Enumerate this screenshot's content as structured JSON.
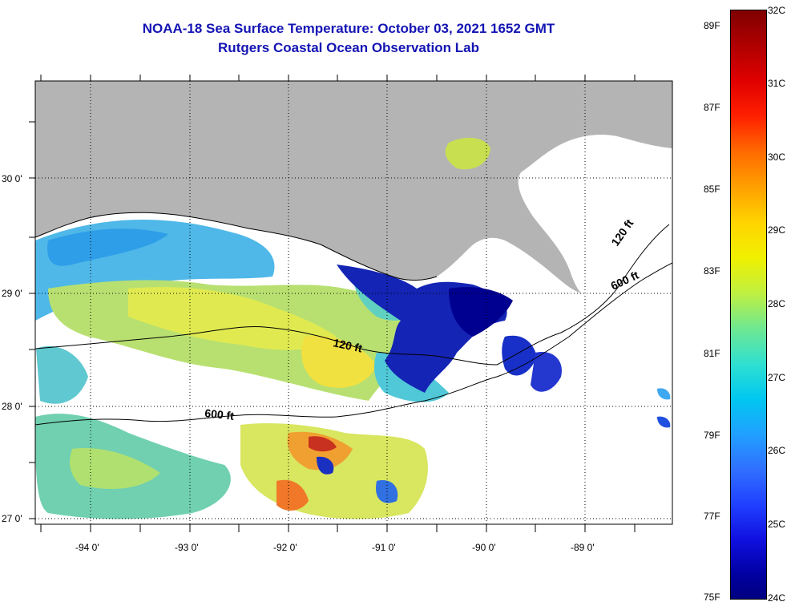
{
  "header": {
    "title": "NOAA-18 Sea Surface Temperature:  October 03, 2021 1652 GMT",
    "subtitle": "Rutgers Coastal Ocean Observation Lab"
  },
  "map": {
    "latitude_labels": [
      "30 0'",
      "29 0'",
      "28 0'",
      "27 0'"
    ],
    "longitude_labels": [
      "-94 0'",
      "-93 0'",
      "-92 0'",
      "-91 0'",
      "-90 0'",
      "-89 0'"
    ],
    "contours": [
      {
        "label": "120 ft"
      },
      {
        "label": "600 ft"
      },
      {
        "label": "120 ft"
      },
      {
        "label": "600 ft"
      }
    ],
    "colors": {
      "land": "#b4b4b4",
      "cloud": "#ffffff",
      "gridline": "#000000"
    }
  },
  "colorbar": {
    "fahrenheit_labels": [
      "89F",
      "87F",
      "85F",
      "83F",
      "81F",
      "79F",
      "77F",
      "75F"
    ],
    "celsius_labels": [
      "32C",
      "31C",
      "30C",
      "29C",
      "28C",
      "27C",
      "26C",
      "25C",
      "24C"
    ],
    "min_color": "#000080",
    "max_color": "#800000"
  }
}
